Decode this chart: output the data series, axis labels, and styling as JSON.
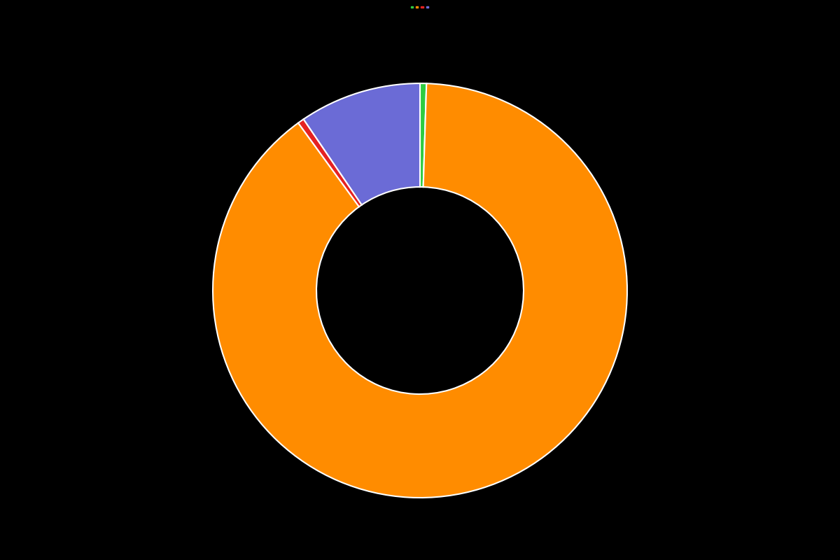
{
  "slices": [
    0.5,
    89.5,
    0.5,
    9.5
  ],
  "colors": [
    "#2ecc40",
    "#ff8c00",
    "#e52222",
    "#6b6bd6"
  ],
  "legend_labels": [
    "",
    "",
    "",
    ""
  ],
  "background_color": "#000000",
  "wedge_linewidth": 1.5,
  "wedge_linecolor": "#ffffff",
  "donut_ratio": 0.5,
  "startangle": 90,
  "figsize": [
    12.0,
    8.0
  ],
  "dpi": 100
}
